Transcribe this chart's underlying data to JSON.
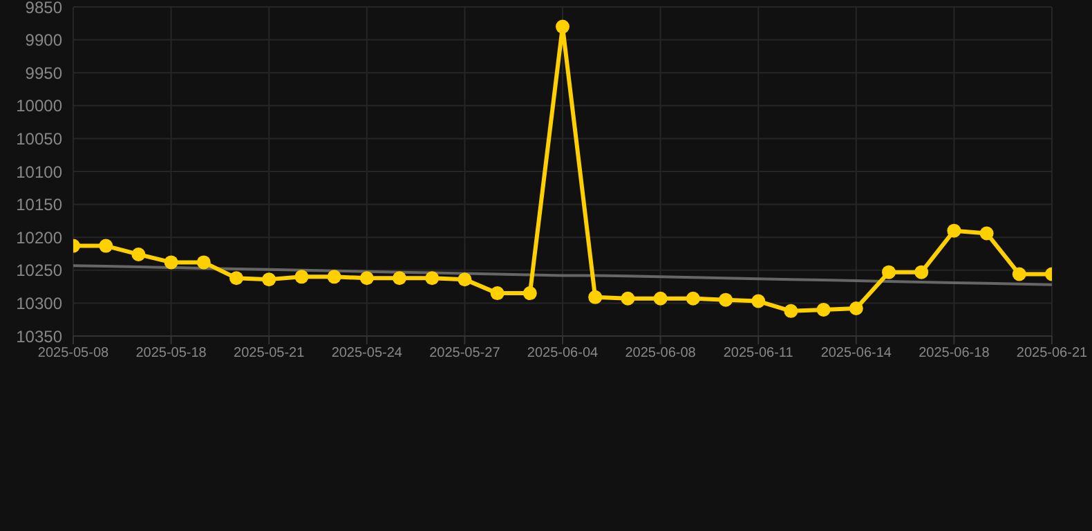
{
  "chart_data": {
    "type": "line",
    "categories": [
      "2025-05-08",
      null,
      null,
      "2025-05-18",
      null,
      null,
      "2025-05-21",
      null,
      null,
      "2025-05-24",
      null,
      null,
      "2025-05-27",
      null,
      null,
      "2025-06-04",
      null,
      null,
      "2025-06-08",
      null,
      null,
      "2025-06-11",
      null,
      null,
      "2025-06-14",
      null,
      null,
      "2025-06-18",
      null,
      null,
      "2025-06-21"
    ],
    "series": [
      {
        "color": "#ffd000",
        "values": [
          10213,
          10213,
          10226,
          10238,
          10238,
          10262,
          10264,
          10260,
          10260,
          10262,
          10262,
          10262,
          10264,
          10285,
          10285,
          9880,
          10291,
          10293,
          10293,
          10293,
          10295,
          10297,
          10312,
          10310,
          10308,
          10253,
          10253,
          10190,
          10194,
          10256,
          10256
        ],
        "marker": "circle"
      },
      {
        "type": "line",
        "color": "#666666",
        "values": [
          10243,
          10244,
          10245,
          10246,
          10247,
          10248,
          10249,
          10250,
          10251,
          10252,
          10253,
          10254,
          10255,
          10256,
          10257,
          10258,
          10258,
          10259,
          10260,
          10261,
          10262,
          10263,
          10264,
          10265,
          10266,
          10267,
          10268,
          10269,
          10270,
          10271,
          10272
        ],
        "marker": "none"
      }
    ],
    "ylim": [
      10350,
      9850
    ],
    "yticks": [
      9850,
      9900,
      9950,
      10000,
      10050,
      10100,
      10150,
      10200,
      10250,
      10300,
      10350
    ],
    "grid": true
  }
}
